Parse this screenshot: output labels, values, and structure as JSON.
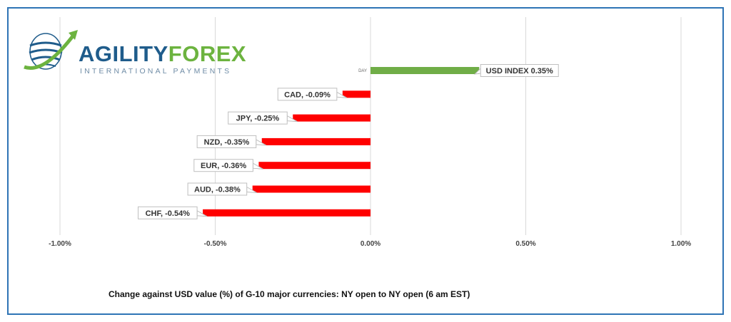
{
  "logo": {
    "brand_part1": "AGILITY",
    "brand_part2": "FOREX",
    "tagline": "INTERNATIONAL PAYMENTS",
    "colors": {
      "blue": "#1f5c8b",
      "green": "#6cb33f"
    }
  },
  "caption": "Change against  USD value (%)  of  G-10 major currencies:  NY open to NY open  (6 am EST)",
  "chart_data": {
    "type": "bar",
    "orientation": "horizontal",
    "categories": [
      "DAY",
      "",
      "",
      "",
      "",
      "",
      ""
    ],
    "values": [
      0.35,
      -0.09,
      -0.25,
      -0.35,
      -0.36,
      -0.38,
      -0.54
    ],
    "data_labels": [
      "USD INDEX 0.35%",
      "CAD, -0.09%",
      "JPY, -0.25%",
      "NZD, -0.35%",
      "EUR, -0.36%",
      "AUD, -0.38%",
      "CHF, -0.54%"
    ],
    "colors": [
      "#70ad47",
      "#ff0000",
      "#ff0000",
      "#ff0000",
      "#ff0000",
      "#ff0000",
      "#ff0000"
    ],
    "xlim": [
      -1.0,
      1.0
    ],
    "xticks": [
      -1.0,
      -0.5,
      0.0,
      0.5,
      1.0
    ],
    "xtick_labels": [
      "-1.00%",
      "-0.50%",
      "0.00%",
      "0.50%",
      "1.00%"
    ],
    "grid": "vertical"
  }
}
